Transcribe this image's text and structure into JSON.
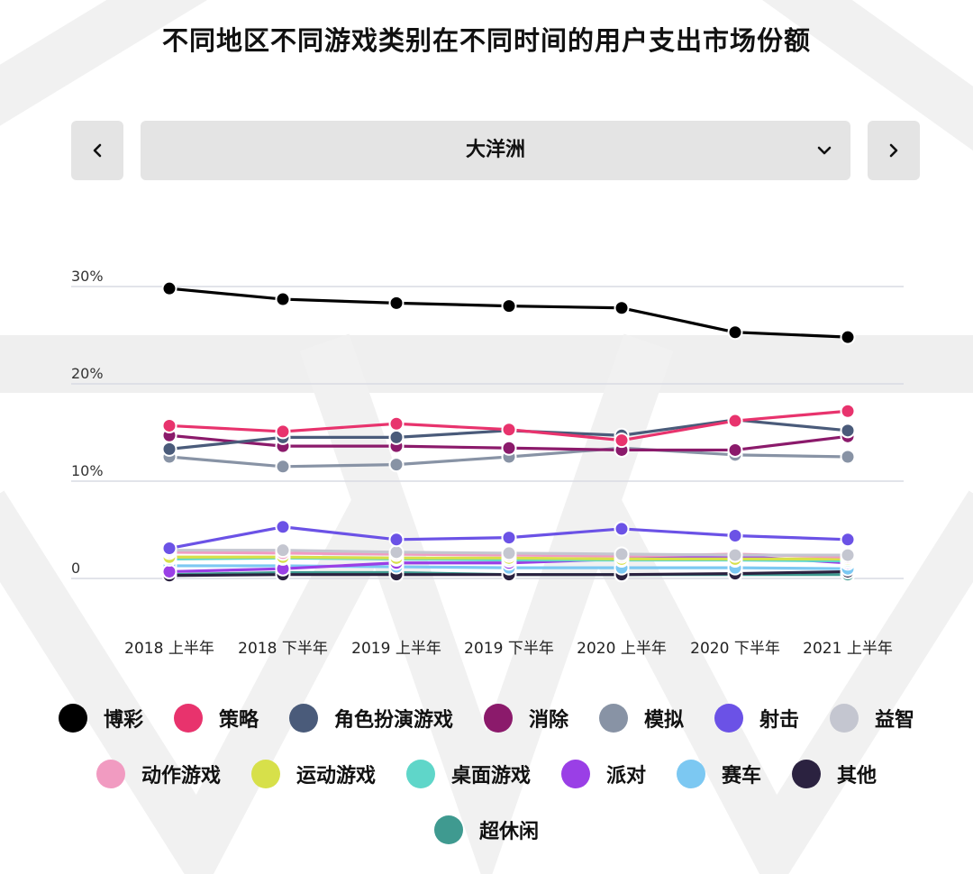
{
  "header": {
    "title": "不同地区不同游戏类别在不同时间的用户支出市场份额"
  },
  "selector": {
    "selected": "大洋洲",
    "prev_icon": "chevron-left-icon",
    "next_icon": "chevron-right-icon",
    "dropdown_icon": "chevron-down-icon"
  },
  "chart_data": {
    "type": "line",
    "x": [
      "2018 上半年",
      "2018 下半年",
      "2019 上半年",
      "2019 下半年",
      "2020 上半年",
      "2020 下半年",
      "2021 上半年"
    ],
    "y_ticks": [
      {
        "value": 30,
        "label": "30%"
      },
      {
        "value": 20,
        "label": "20%"
      },
      {
        "value": 10,
        "label": "10%"
      },
      {
        "value": 0,
        "label": "0"
      }
    ],
    "ylim": [
      0,
      30
    ],
    "grid": true,
    "legend_position": "bottom",
    "series": [
      {
        "name": "博彩",
        "color": "#000000",
        "values": [
          29.8,
          28.7,
          28.3,
          28.0,
          27.8,
          25.3,
          24.8
        ]
      },
      {
        "name": "策略",
        "color": "#e8336d",
        "values": [
          15.7,
          15.1,
          15.9,
          15.3,
          14.2,
          16.2,
          17.2
        ]
      },
      {
        "name": "角色扮演游戏",
        "color": "#4a5b7a",
        "values": [
          13.3,
          14.5,
          14.5,
          15.2,
          14.7,
          16.3,
          15.2
        ]
      },
      {
        "name": "消除",
        "color": "#8b1a6b",
        "values": [
          14.7,
          13.6,
          13.6,
          13.4,
          13.2,
          13.2,
          14.6
        ]
      },
      {
        "name": "模拟",
        "color": "#8893a5",
        "values": [
          12.5,
          11.5,
          11.7,
          12.5,
          13.4,
          12.7,
          12.5
        ]
      },
      {
        "name": "射击",
        "color": "#6b52e6",
        "values": [
          3.1,
          5.3,
          4.0,
          4.2,
          5.1,
          4.4,
          4.0
        ]
      },
      {
        "name": "益智",
        "color": "#c4c6d0",
        "values": [
          2.9,
          2.9,
          2.7,
          2.6,
          2.5,
          2.4,
          2.4
        ]
      },
      {
        "name": "动作游戏",
        "color": "#f19bc1",
        "values": [
          2.7,
          2.6,
          2.5,
          2.4,
          2.3,
          2.5,
          2.2
        ]
      },
      {
        "name": "运动游戏",
        "color": "#d7e04a",
        "values": [
          2.2,
          2.2,
          2.1,
          2.1,
          2.0,
          2.0,
          2.0
        ]
      },
      {
        "name": "桌面游戏",
        "color": "#5fd6c9",
        "values": [
          2.0,
          2.1,
          2.0,
          1.9,
          1.9,
          1.9,
          1.8
        ]
      },
      {
        "name": "派对",
        "color": "#9a3fe6",
        "values": [
          0.7,
          1.0,
          1.6,
          1.6,
          2.0,
          2.3,
          1.6
        ]
      },
      {
        "name": "赛车",
        "color": "#7cc8f2",
        "values": [
          1.3,
          1.3,
          1.2,
          1.1,
          1.1,
          1.1,
          1.0
        ]
      },
      {
        "name": "其他",
        "color": "#2b2240",
        "values": [
          0.3,
          0.4,
          0.4,
          0.4,
          0.4,
          0.5,
          0.7
        ]
      },
      {
        "name": "超休闲",
        "color": "#3f9a90",
        "values": [
          0.4,
          0.6,
          0.6,
          0.4,
          0.4,
          0.4,
          0.4
        ]
      }
    ]
  }
}
